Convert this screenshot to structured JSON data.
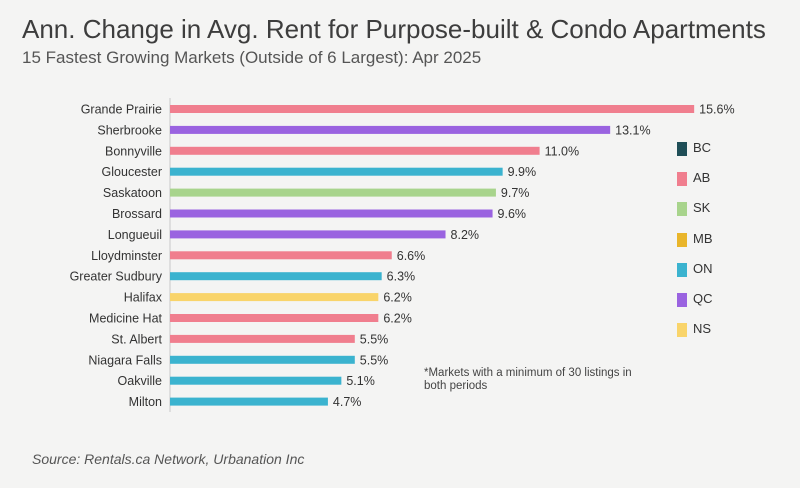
{
  "title": "Ann. Change in Avg. Rent for Purpose-built & Condo Apartments",
  "subtitle": "15 Fastest Growing Markets (Outside of 6 Largest): Apr 2025",
  "note": "*Markets with a minimum of 30 listings in both periods",
  "source": "Source: Rentals.ca Network, Urbanation Inc",
  "legend": [
    {
      "label": "BC",
      "color": "#1f4e57"
    },
    {
      "label": "AB",
      "color": "#f07e8e"
    },
    {
      "label": "SK",
      "color": "#a8d48c"
    },
    {
      "label": "MB",
      "color": "#e9b52a"
    },
    {
      "label": "ON",
      "color": "#3bb3cf"
    },
    {
      "label": "QC",
      "color": "#9a63e0"
    },
    {
      "label": "NS",
      "color": "#f9d46a"
    }
  ],
  "chart_data": {
    "type": "bar",
    "orientation": "horizontal",
    "title": "Ann. Change in Avg. Rent for Purpose-built & Condo Apartments",
    "value_suffix": "%",
    "xlim": [
      0,
      16
    ],
    "categories": [
      "Grande Prairie",
      "Sherbrooke",
      "Bonnyville",
      "Gloucester",
      "Saskatoon",
      "Brossard",
      "Longueuil",
      "Lloydminster",
      "Greater Sudbury",
      "Halifax",
      "Medicine Hat",
      "St. Albert",
      "Niagara Falls",
      "Oakville",
      "Milton"
    ],
    "values": [
      15.6,
      13.1,
      11.0,
      9.9,
      9.7,
      9.6,
      8.2,
      6.6,
      6.3,
      6.2,
      6.2,
      5.5,
      5.5,
      5.1,
      4.7
    ],
    "labels": [
      "15.6%",
      "13.1%",
      "11.0%",
      "9.9%",
      "9.7%",
      "9.6%",
      "8.2%",
      "6.6%",
      "6.3%",
      "6.2%",
      "6.2%",
      "5.5%",
      "5.5%",
      "5.1%",
      "4.7%"
    ],
    "provinces": [
      "AB",
      "QC",
      "AB",
      "ON",
      "SK",
      "QC",
      "QC",
      "AB",
      "ON",
      "NS",
      "AB",
      "AB",
      "ON",
      "ON",
      "ON"
    ]
  }
}
